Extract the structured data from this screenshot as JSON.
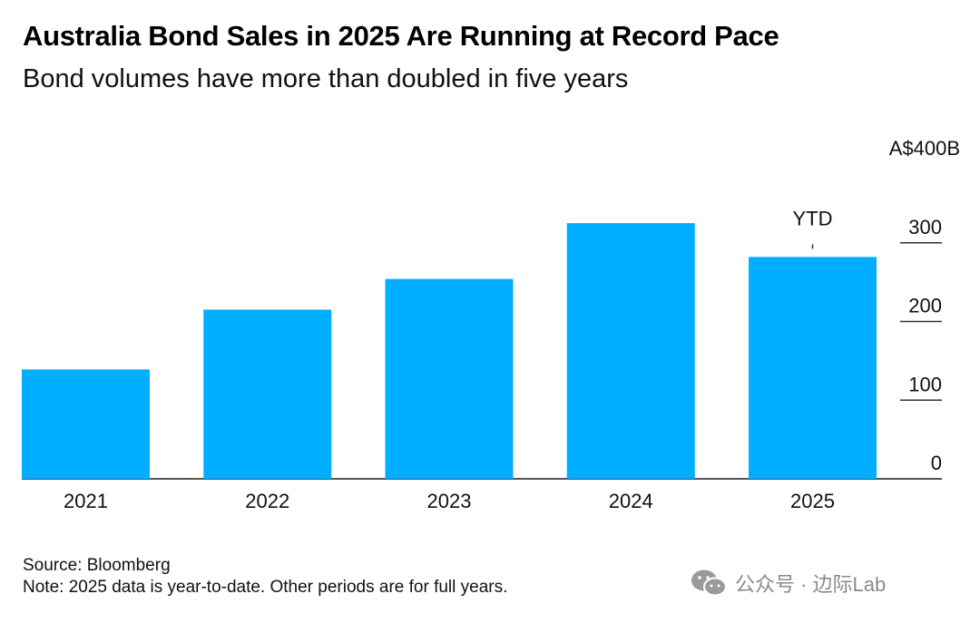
{
  "chart_data": {
    "type": "bar",
    "title": "Australia Bond Sales in 2025 Are Running at Record Pace",
    "subtitle": "Bond volumes have more than doubled in five years",
    "categories": [
      "2021",
      "2022",
      "2023",
      "2024",
      "2025"
    ],
    "values": [
      139,
      215,
      254,
      325,
      282
    ],
    "ylim": [
      0,
      400
    ],
    "yticks": [
      0,
      100,
      200,
      300,
      400
    ],
    "ytick_labels": [
      "0",
      "100",
      "200",
      "300",
      "A$400B"
    ],
    "annotation": {
      "category": "2025",
      "text": "YTD"
    },
    "xlabel": "",
    "ylabel": "",
    "bar_color": "#00aeff"
  },
  "footer": {
    "source": "Source: Bloomberg",
    "note": "Note: 2025 data is year-to-date. Other periods are for full years."
  },
  "watermark": {
    "text": "公众号 · 边际Lab",
    "icon": "wechat-icon"
  }
}
